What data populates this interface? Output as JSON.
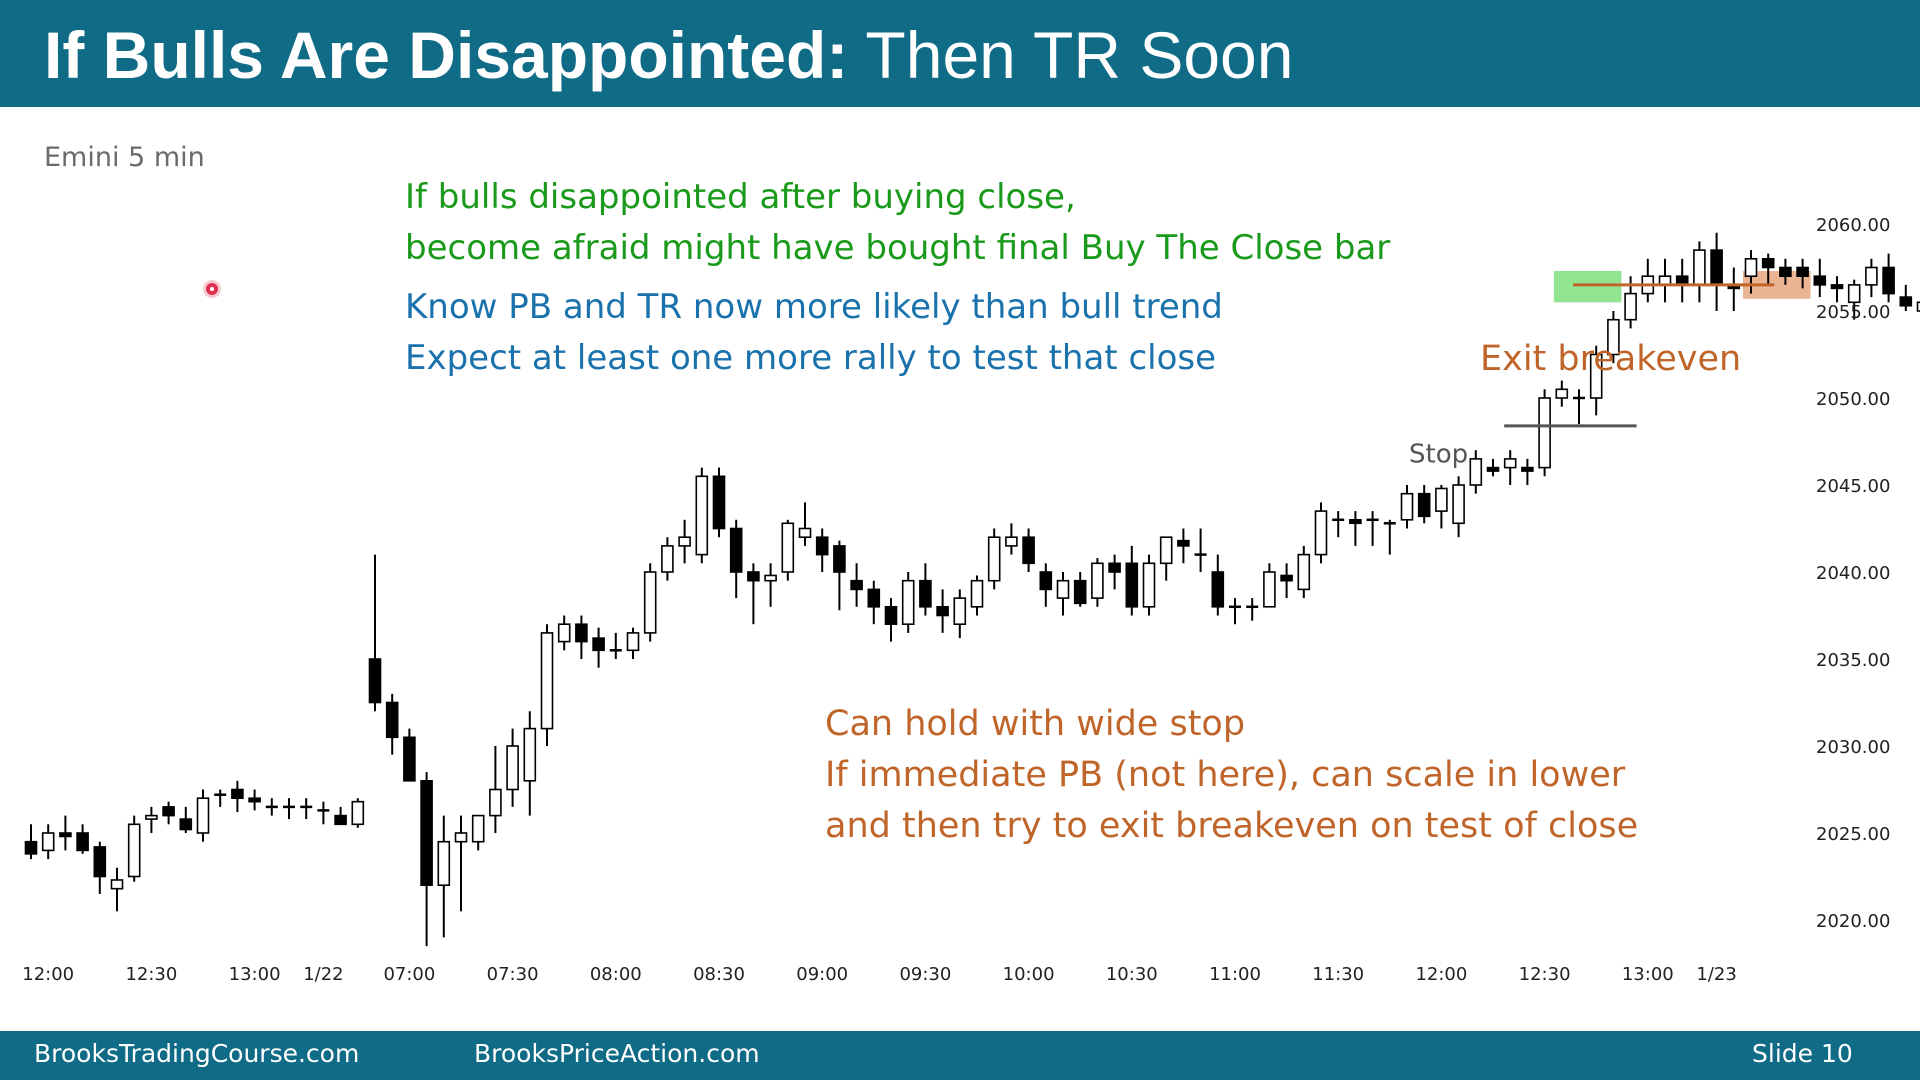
{
  "slide": {
    "title_bold": "If Bulls Are Disappointed:",
    "title_rest": " Then TR Soon",
    "chart_label": "Emini 5 min",
    "notes_green": [
      "If bulls disappointed after buying close,",
      "become afraid might have bought final Buy The Close bar"
    ],
    "notes_blue": [
      "Know PB and TR now more likely than bull trend",
      "Expect at least one more rally to test that close"
    ],
    "notes_orange": [
      "Can hold with wide stop",
      "If immediate PB (not here), can scale in lower",
      "and then try to exit breakeven on test of close"
    ],
    "footer_left": "BrooksTradingCourse.com",
    "footer_mid": "BrooksPriceAction.com",
    "footer_right": "Slide  10"
  },
  "chart_data": {
    "type": "candlestick",
    "title": "Emini 5 min",
    "ylim": [
      2017.5,
      2062
    ],
    "y_ticks": [
      "2020.00",
      "2025.00",
      "2030.00",
      "2035.00",
      "2040.00",
      "2045.00",
      "2050.00",
      "2055.00",
      "2060.00"
    ],
    "x_ticks": [
      {
        "label": "12:00",
        "bar": 1
      },
      {
        "label": "12:30",
        "bar": 7
      },
      {
        "label": "13:00",
        "bar": 13
      },
      {
        "label": "1/22",
        "bar": 17
      },
      {
        "label": "07:00",
        "bar": 22
      },
      {
        "label": "07:30",
        "bar": 28
      },
      {
        "label": "08:00",
        "bar": 34
      },
      {
        "label": "08:30",
        "bar": 40
      },
      {
        "label": "09:00",
        "bar": 46
      },
      {
        "label": "09:30",
        "bar": 52
      },
      {
        "label": "10:00",
        "bar": 58
      },
      {
        "label": "10:30",
        "bar": 64
      },
      {
        "label": "11:00",
        "bar": 70
      },
      {
        "label": "11:30",
        "bar": 76
      },
      {
        "label": "12:00",
        "bar": 82
      },
      {
        "label": "12:30",
        "bar": 88
      },
      {
        "label": "13:00",
        "bar": 94
      },
      {
        "label": "1/23",
        "bar": 98
      }
    ],
    "ohlc": [
      [
        2024.5,
        2025.5,
        2023.5,
        2023.8
      ],
      [
        2024.0,
        2025.5,
        2023.5,
        2025.0
      ],
      [
        2025.0,
        2026.0,
        2024.0,
        2024.8
      ],
      [
        2025.0,
        2025.5,
        2023.8,
        2024.0
      ],
      [
        2024.2,
        2024.5,
        2021.5,
        2022.5
      ],
      [
        2021.8,
        2023.0,
        2020.5,
        2022.3
      ],
      [
        2022.5,
        2026.0,
        2022.2,
        2025.5
      ],
      [
        2025.8,
        2026.5,
        2025.0,
        2026.0
      ],
      [
        2026.5,
        2026.8,
        2025.5,
        2026.0
      ],
      [
        2025.8,
        2026.5,
        2025.0,
        2025.2
      ],
      [
        2025.0,
        2027.5,
        2024.5,
        2027.0
      ],
      [
        2027.2,
        2027.5,
        2026.5,
        2027.2
      ],
      [
        2027.5,
        2028.0,
        2026.2,
        2027.0
      ],
      [
        2027.0,
        2027.5,
        2026.3,
        2026.8
      ],
      [
        2026.5,
        2027.0,
        2026.0,
        2026.5
      ],
      [
        2026.5,
        2027.0,
        2025.8,
        2026.5
      ],
      [
        2026.5,
        2027.0,
        2025.8,
        2026.5
      ],
      [
        2026.3,
        2026.8,
        2025.5,
        2026.3
      ],
      [
        2026.0,
        2026.5,
        2025.5,
        2025.5
      ],
      [
        2025.5,
        2027.0,
        2025.3,
        2026.8
      ],
      [
        2035.0,
        2041.0,
        2032.0,
        2032.5
      ],
      [
        2032.5,
        2033.0,
        2029.5,
        2030.5
      ],
      [
        2030.5,
        2031.0,
        2028.0,
        2028.0
      ],
      [
        2028.0,
        2028.5,
        2018.5,
        2022.0
      ],
      [
        2022.0,
        2026.0,
        2019.0,
        2024.5
      ],
      [
        2024.5,
        2026.0,
        2020.5,
        2025.0
      ],
      [
        2024.5,
        2026.0,
        2024.0,
        2026.0
      ],
      [
        2026.0,
        2030.0,
        2025.0,
        2027.5
      ],
      [
        2027.5,
        2031.0,
        2026.5,
        2030.0
      ],
      [
        2028.0,
        2032.0,
        2026.0,
        2031.0
      ],
      [
        2031.0,
        2037.0,
        2030.0,
        2036.5
      ],
      [
        2036.0,
        2037.5,
        2035.5,
        2037.0
      ],
      [
        2037.0,
        2037.5,
        2035.0,
        2036.0
      ],
      [
        2036.2,
        2036.8,
        2034.5,
        2035.5
      ],
      [
        2035.5,
        2036.5,
        2035.0,
        2035.5
      ],
      [
        2035.5,
        2036.8,
        2035.0,
        2036.5
      ],
      [
        2036.5,
        2040.5,
        2036.0,
        2040.0
      ],
      [
        2040.0,
        2042.0,
        2039.5,
        2041.5
      ],
      [
        2041.5,
        2043.0,
        2040.5,
        2042.0
      ],
      [
        2041.0,
        2046.0,
        2040.5,
        2045.5
      ],
      [
        2045.5,
        2046.0,
        2042.0,
        2042.5
      ],
      [
        2042.5,
        2043.0,
        2038.5,
        2040.0
      ],
      [
        2040.0,
        2040.5,
        2037.0,
        2039.5
      ],
      [
        2039.5,
        2040.5,
        2038.0,
        2039.8
      ],
      [
        2040.0,
        2043.0,
        2039.5,
        2042.8
      ],
      [
        2042.0,
        2044.0,
        2041.5,
        2042.5
      ],
      [
        2042.0,
        2042.5,
        2040.0,
        2041.0
      ],
      [
        2041.5,
        2041.8,
        2037.8,
        2040.0
      ],
      [
        2039.5,
        2040.5,
        2038.0,
        2039.0
      ],
      [
        2039.0,
        2039.5,
        2037.0,
        2038.0
      ],
      [
        2038.0,
        2038.5,
        2036.0,
        2037.0
      ],
      [
        2037.0,
        2040.0,
        2036.5,
        2039.5
      ],
      [
        2039.5,
        2040.5,
        2037.5,
        2038.0
      ],
      [
        2038.0,
        2039.0,
        2036.5,
        2037.5
      ],
      [
        2037.0,
        2039.0,
        2036.2,
        2038.5
      ],
      [
        2038.0,
        2039.8,
        2037.5,
        2039.5
      ],
      [
        2039.5,
        2042.5,
        2039.0,
        2042.0
      ],
      [
        2041.5,
        2042.8,
        2041.0,
        2042.0
      ],
      [
        2042.0,
        2042.5,
        2040.0,
        2040.5
      ],
      [
        2040.0,
        2040.5,
        2038.0,
        2039.0
      ],
      [
        2038.5,
        2040.0,
        2037.5,
        2039.5
      ],
      [
        2039.5,
        2040.0,
        2038.0,
        2038.2
      ],
      [
        2038.5,
        2040.8,
        2038.0,
        2040.5
      ],
      [
        2040.5,
        2041.0,
        2039.0,
        2040.0
      ],
      [
        2040.5,
        2041.5,
        2037.5,
        2038.0
      ],
      [
        2038.0,
        2041.0,
        2037.5,
        2040.5
      ],
      [
        2040.5,
        2042.0,
        2039.5,
        2042.0
      ],
      [
        2041.8,
        2042.5,
        2040.5,
        2041.5
      ],
      [
        2041.0,
        2042.5,
        2040.0,
        2041.0
      ],
      [
        2040.0,
        2041.0,
        2037.5,
        2038.0
      ],
      [
        2038.0,
        2038.5,
        2037.0,
        2038.0
      ],
      [
        2038.0,
        2038.5,
        2037.2,
        2038.0
      ],
      [
        2038.0,
        2040.5,
        2038.0,
        2040.0
      ],
      [
        2039.8,
        2040.5,
        2038.5,
        2039.5
      ],
      [
        2039.0,
        2041.5,
        2038.5,
        2041.0
      ],
      [
        2041.0,
        2044.0,
        2040.5,
        2043.5
      ],
      [
        2043.0,
        2043.5,
        2042.0,
        2043.0
      ],
      [
        2043.0,
        2043.5,
        2041.5,
        2042.8
      ],
      [
        2043.0,
        2043.5,
        2041.5,
        2043.0
      ],
      [
        2042.8,
        2043.0,
        2041.0,
        2042.8
      ],
      [
        2043.0,
        2045.0,
        2042.5,
        2044.5
      ],
      [
        2044.5,
        2045.0,
        2042.8,
        2043.2
      ],
      [
        2043.5,
        2045.0,
        2042.5,
        2044.8
      ],
      [
        2042.8,
        2045.5,
        2042.0,
        2045.0
      ],
      [
        2045.0,
        2047.0,
        2044.5,
        2046.5
      ],
      [
        2046.0,
        2046.5,
        2045.5,
        2045.8
      ],
      [
        2046.0,
        2047.0,
        2045.0,
        2046.5
      ],
      [
        2046.0,
        2046.5,
        2045.0,
        2045.8
      ],
      [
        2046.0,
        2050.5,
        2045.5,
        2050.0
      ],
      [
        2050.0,
        2051.0,
        2049.5,
        2050.5
      ],
      [
        2050.0,
        2050.5,
        2048.5,
        2050.0
      ],
      [
        2050.0,
        2053.0,
        2049.0,
        2052.5
      ],
      [
        2052.5,
        2055.0,
        2052.0,
        2054.5
      ],
      [
        2054.5,
        2057.0,
        2054.0,
        2056.0
      ],
      [
        2056.0,
        2058.0,
        2055.5,
        2057.0
      ],
      [
        2056.5,
        2058.0,
        2055.5,
        2057.0
      ],
      [
        2057.0,
        2058.0,
        2055.5,
        2056.5
      ],
      [
        2056.5,
        2059.0,
        2055.5,
        2058.5
      ],
      [
        2058.5,
        2059.5,
        2055.0,
        2056.5
      ],
      [
        2056.5,
        2057.5,
        2055.0,
        2056.3
      ],
      [
        2057.0,
        2058.5,
        2056.0,
        2058.0
      ],
      [
        2058.0,
        2058.3,
        2056.5,
        2057.5
      ],
      [
        2057.5,
        2058.0,
        2056.5,
        2057.0
      ],
      [
        2057.5,
        2058.0,
        2056.3,
        2057.0
      ],
      [
        2057.0,
        2058.0,
        2055.8,
        2056.5
      ],
      [
        2056.5,
        2057.0,
        2055.5,
        2056.3
      ],
      [
        2055.5,
        2056.8,
        2054.5,
        2056.5
      ],
      [
        2056.5,
        2058.0,
        2055.8,
        2057.5
      ],
      [
        2057.5,
        2058.3,
        2055.5,
        2056.0
      ],
      [
        2055.8,
        2056.5,
        2055.0,
        2055.3
      ],
      [
        2055.0,
        2056.0,
        2054.5,
        2055.5
      ],
      [
        2055.0,
        2057.0,
        2054.5,
        2056.5
      ]
    ],
    "annotations": [
      {
        "type": "label",
        "text": "Exit breakeven",
        "x": 2,
        "y": 2051.6
      },
      {
        "type": "label",
        "text": "Stop",
        "x": 1,
        "y": 2046.3
      },
      {
        "type": "hline",
        "name": "stop",
        "y": 2048.4,
        "bar_from": 86,
        "bar_to": 93
      },
      {
        "type": "hline",
        "name": "entry",
        "y": 2056.5,
        "bar_from": 90,
        "bar_to": 101
      },
      {
        "type": "box",
        "name": "buy-close-highlight",
        "y0": 2055.5,
        "y1": 2057.3,
        "bar_from": 89,
        "bar_to": 92,
        "color": "#7ee07e"
      },
      {
        "type": "box",
        "name": "exit-highlight",
        "y0": 2055.7,
        "y1": 2057.3,
        "bar_from": 100,
        "bar_to": 103,
        "color": "#e8a880"
      }
    ],
    "ylabel": "",
    "xlabel": ""
  },
  "colors": {
    "brand": "#0f6b86",
    "green_text": "#1a9a1a",
    "blue_text": "#1a72ad",
    "orange_text": "#c0652a",
    "stop_line": "#555555",
    "entry_line": "#c0652a"
  }
}
